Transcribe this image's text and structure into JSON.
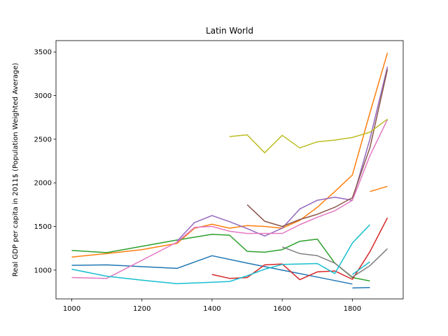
{
  "chart_data": {
    "type": "line",
    "title": "Latin World",
    "xlabel": "",
    "ylabel": "Real GDP per capita in 2011$ (Population Weighted Average)",
    "xlim": [
      955,
      1945
    ],
    "ylim": [
      670,
      3630
    ],
    "xticks": [
      1000,
      1200,
      1400,
      1600,
      1800
    ],
    "yticks": [
      1000,
      1500,
      2000,
      2500,
      3000,
      3500
    ],
    "grid": false,
    "legend": "none",
    "series": [
      {
        "color": "#1f77b4",
        "x": [
          1000,
          1100,
          1300,
          1400,
          1500,
          1600,
          1700,
          1800
        ],
        "y": [
          1055,
          1060,
          1020,
          1165,
          1080,
          1000,
          920,
          840
        ]
      },
      {
        "color": "#1f77b4",
        "x": [
          1800,
          1850
        ],
        "y": [
          795,
          800
        ]
      },
      {
        "color": "#ff7f0e",
        "x": [
          1000,
          1100,
          1200,
          1300,
          1350,
          1400,
          1450,
          1500,
          1550,
          1600,
          1650,
          1700,
          1750,
          1800,
          1850,
          1900
        ],
        "y": [
          1150,
          1190,
          1235,
          1305,
          1480,
          1525,
          1480,
          1510,
          1500,
          1480,
          1570,
          1720,
          1900,
          2090,
          2800,
          3490
        ]
      },
      {
        "color": "#ff7f0e",
        "x": [
          1850,
          1900
        ],
        "y": [
          1900,
          1960
        ]
      },
      {
        "color": "#2ca02c",
        "x": [
          1000,
          1100,
          1300,
          1400,
          1450,
          1500,
          1550,
          1600,
          1650,
          1700,
          1750,
          1800,
          1850
        ],
        "y": [
          1225,
          1200,
          1345,
          1410,
          1400,
          1215,
          1205,
          1235,
          1330,
          1355,
          1080,
          915,
          875
        ]
      },
      {
        "color": "#d62728",
        "x": [
          1400,
          1450,
          1500,
          1550,
          1600,
          1650,
          1700,
          1750,
          1800,
          1850,
          1900
        ],
        "y": [
          950,
          905,
          915,
          1060,
          1070,
          890,
          980,
          990,
          895,
          1210,
          1600
        ]
      },
      {
        "color": "#9467bd",
        "x": [
          1300,
          1350,
          1400,
          1450,
          1500,
          1550,
          1600,
          1650,
          1700,
          1750,
          1800,
          1850,
          1900
        ],
        "y": [
          1330,
          1545,
          1625,
          1555,
          1475,
          1390,
          1480,
          1700,
          1800,
          1835,
          1800,
          2500,
          3330
        ]
      },
      {
        "color": "#8c564b",
        "x": [
          1500,
          1550,
          1600,
          1650,
          1700,
          1750,
          1800,
          1850,
          1900
        ],
        "y": [
          1750,
          1560,
          1500,
          1580,
          1640,
          1720,
          1830,
          2400,
          3300
        ]
      },
      {
        "color": "#e377c2",
        "x": [
          1000,
          1100,
          1300,
          1350,
          1400,
          1450,
          1500,
          1550,
          1600,
          1650,
          1700,
          1750,
          1800,
          1850,
          1900
        ],
        "y": [
          915,
          905,
          1320,
          1490,
          1500,
          1445,
          1420,
          1420,
          1420,
          1520,
          1605,
          1680,
          1800,
          2310,
          2725
        ]
      },
      {
        "color": "#7f7f7f",
        "x": [
          1600,
          1650,
          1700,
          1750,
          1800,
          1850,
          1900
        ],
        "y": [
          1265,
          1190,
          1165,
          1080,
          920,
          1050,
          1245
        ]
      },
      {
        "color": "#bcbd22",
        "x": [
          1450,
          1500,
          1550,
          1600,
          1650,
          1700,
          1750,
          1800,
          1850,
          1900
        ],
        "y": [
          2530,
          2550,
          2345,
          2545,
          2400,
          2470,
          2490,
          2520,
          2580,
          2730
        ]
      },
      {
        "color": "#17becf",
        "x": [
          1000,
          1100,
          1200,
          1300,
          1400,
          1450,
          1500,
          1550,
          1600,
          1650,
          1700,
          1750,
          1800,
          1850
        ],
        "y": [
          1010,
          930,
          885,
          845,
          860,
          870,
          935,
          1010,
          1065,
          1070,
          1075,
          960,
          1310,
          1520
        ]
      },
      {
        "color": "#17becf",
        "x": [
          1800,
          1850
        ],
        "y": [
          950,
          1095
        ]
      }
    ]
  }
}
